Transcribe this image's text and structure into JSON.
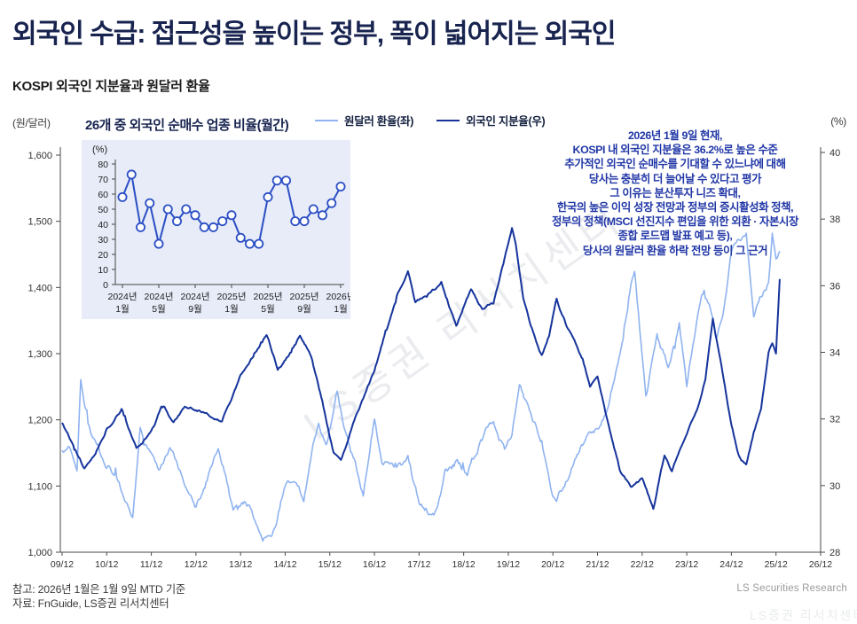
{
  "header": {
    "title": "외국인 수급: 접근성을 높이는 정부, 폭이 넓어지는 외국인"
  },
  "chart_subtitle": "KOSPI 외국인 지분율과 원달러 환율",
  "axis_units": {
    "left": "(원/달러)",
    "right": "(%)"
  },
  "legend": {
    "series1": "원달러 환율(좌)",
    "series2": "외국인 지분율(우)"
  },
  "inset": {
    "title": "26개 중 외국인 순매수 업종 비율(월간)"
  },
  "annotation": {
    "line1": "2026년 1월 9일 현재,",
    "line2": "KOSPI 내 외국인 지분율은 36.2%로 높은 수준",
    "line3": "추가적인 외국인 순매수를 기대할 수 있느냐에 대해",
    "line4": "당사는 충분히 더 늘어날 수 있다고 평가",
    "line5": "그 이유는 분산투자 니즈 확대,",
    "line6": "한국의 높은 이익 성장 전망과 정부의 증시활성화 정책,",
    "line7": "정부의 정책(MSCI 선진지수 편입을 위한 외환 · 자본시장",
    "line8": "종합 로드맵 발표 예고 등),",
    "line9": "당사의 원달러 환율 하락 전망 등이 그 근거"
  },
  "watermark": {
    "text": "LS증권 리서치센터"
  },
  "footer": {
    "note": "참고: 2026년 1월은 1월 9일 MTD 기준",
    "source": "자료: FnGuide, LS증권 리서치센터",
    "brand": "LS Securities  Research"
  },
  "colors": {
    "title_navy": "#18244f",
    "series_usdkrw": "#8fb3f0",
    "series_ownership": "#16349c",
    "annotation_blue": "#2036a6",
    "inset_bg": "#e7ecf8",
    "inset_line": "#2b4ec4",
    "axis": "#4a4a4a",
    "tick_text": "#333333"
  },
  "chart_data": [
    {
      "type": "line",
      "title": "KOSPI 외국인 지분율과 원달러 환율",
      "x_tick_labels": [
        "09/12",
        "10/12",
        "11/12",
        "12/12",
        "13/12",
        "14/12",
        "15/12",
        "16/12",
        "17/12",
        "18/12",
        "19/12",
        "20/12",
        "21/12",
        "22/12",
        "23/12",
        "24/12",
        "25/12",
        "26/12"
      ],
      "left_axis": {
        "unit": "(원/달러)",
        "min": 1000,
        "max": 1600,
        "ticks": [
          1000,
          1100,
          1200,
          1300,
          1400,
          1500,
          1600
        ]
      },
      "right_axis": {
        "unit": "(%)",
        "min": 28,
        "max": 40,
        "ticks": [
          28,
          30,
          32,
          34,
          36,
          38,
          40
        ]
      },
      "legend_position": "top",
      "grid": false,
      "series": [
        {
          "name": "원달러 환율(좌)",
          "axis": "left",
          "points": [
            [
              "2009-12",
              1150
            ],
            [
              "2010-02",
              1160
            ],
            [
              "2010-04",
              1115
            ],
            [
              "2010-05",
              1255
            ],
            [
              "2010-07",
              1195
            ],
            [
              "2010-09",
              1165
            ],
            [
              "2010-12",
              1135
            ],
            [
              "2011-03",
              1115
            ],
            [
              "2011-07",
              1060
            ],
            [
              "2011-09",
              1190
            ],
            [
              "2011-10",
              1160
            ],
            [
              "2011-12",
              1150
            ],
            [
              "2012-02",
              1125
            ],
            [
              "2012-05",
              1165
            ],
            [
              "2012-07",
              1135
            ],
            [
              "2012-09",
              1110
            ],
            [
              "2012-12",
              1070
            ],
            [
              "2013-03",
              1110
            ],
            [
              "2013-06",
              1155
            ],
            [
              "2013-08",
              1115
            ],
            [
              "2013-10",
              1060
            ],
            [
              "2014-01",
              1070
            ],
            [
              "2014-03",
              1065
            ],
            [
              "2014-06",
              1015
            ],
            [
              "2014-09",
              1035
            ],
            [
              "2014-12",
              1100
            ],
            [
              "2015-03",
              1110
            ],
            [
              "2015-05",
              1085
            ],
            [
              "2015-09",
              1195
            ],
            [
              "2015-11",
              1155
            ],
            [
              "2016-02",
              1240
            ],
            [
              "2016-05",
              1165
            ],
            [
              "2016-09",
              1090
            ],
            [
              "2016-12",
              1205
            ],
            [
              "2017-02",
              1140
            ],
            [
              "2017-05",
              1125
            ],
            [
              "2017-09",
              1140
            ],
            [
              "2017-12",
              1075
            ],
            [
              "2018-04",
              1055
            ],
            [
              "2018-07",
              1120
            ],
            [
              "2018-10",
              1135
            ],
            [
              "2019-01",
              1120
            ],
            [
              "2019-04",
              1160
            ],
            [
              "2019-08",
              1200
            ],
            [
              "2019-11",
              1160
            ],
            [
              "2020-01",
              1175
            ],
            [
              "2020-03",
              1250
            ],
            [
              "2020-06",
              1205
            ],
            [
              "2020-09",
              1170
            ],
            [
              "2020-12",
              1090
            ],
            [
              "2021-01",
              1080
            ],
            [
              "2021-05",
              1125
            ],
            [
              "2021-08",
              1160
            ],
            [
              "2021-10",
              1185
            ],
            [
              "2021-12",
              1185
            ],
            [
              "2022-03",
              1220
            ],
            [
              "2022-06",
              1300
            ],
            [
              "2022-09",
              1410
            ],
            [
              "2022-10",
              1430
            ],
            [
              "2022-12",
              1300
            ],
            [
              "2023-01",
              1235
            ],
            [
              "2023-04",
              1320
            ],
            [
              "2023-07",
              1280
            ],
            [
              "2023-10",
              1345
            ],
            [
              "2023-12",
              1255
            ],
            [
              "2024-02",
              1330
            ],
            [
              "2024-04",
              1390
            ],
            [
              "2024-06",
              1370
            ],
            [
              "2024-08",
              1320
            ],
            [
              "2024-10",
              1365
            ],
            [
              "2024-12",
              1450
            ],
            [
              "2025-01",
              1465
            ],
            [
              "2025-04",
              1480
            ],
            [
              "2025-06",
              1360
            ],
            [
              "2025-08",
              1385
            ],
            [
              "2025-10",
              1405
            ],
            [
              "2025-11",
              1478
            ],
            [
              "2025-12",
              1440
            ],
            [
              "2026-01",
              1455
            ]
          ]
        },
        {
          "name": "외국인 지분율(우)",
          "axis": "right",
          "points": [
            [
              "2009-12",
              31.9
            ],
            [
              "2010-03",
              31.2
            ],
            [
              "2010-06",
              30.5
            ],
            [
              "2010-09",
              31.0
            ],
            [
              "2010-12",
              31.7
            ],
            [
              "2011-04",
              32.3
            ],
            [
              "2011-08",
              31.1
            ],
            [
              "2011-12",
              31.6
            ],
            [
              "2012-03",
              32.4
            ],
            [
              "2012-06",
              31.9
            ],
            [
              "2012-09",
              32.4
            ],
            [
              "2012-12",
              32.3
            ],
            [
              "2013-04",
              32.1
            ],
            [
              "2013-07",
              31.9
            ],
            [
              "2013-12",
              33.3
            ],
            [
              "2014-04",
              34.0
            ],
            [
              "2014-07",
              34.5
            ],
            [
              "2014-10",
              33.5
            ],
            [
              "2015-01",
              33.9
            ],
            [
              "2015-04",
              34.5
            ],
            [
              "2015-07",
              33.9
            ],
            [
              "2015-10",
              32.5
            ],
            [
              "2016-01",
              31.0
            ],
            [
              "2016-03",
              30.7
            ],
            [
              "2016-06",
              31.8
            ],
            [
              "2016-09",
              32.6
            ],
            [
              "2016-12",
              33.5
            ],
            [
              "2017-03",
              34.6
            ],
            [
              "2017-06",
              35.7
            ],
            [
              "2017-09",
              36.4
            ],
            [
              "2017-11",
              35.5
            ],
            [
              "2018-03",
              35.8
            ],
            [
              "2018-06",
              36.1
            ],
            [
              "2018-10",
              34.8
            ],
            [
              "2019-02",
              35.9
            ],
            [
              "2019-05",
              35.3
            ],
            [
              "2019-08",
              35.5
            ],
            [
              "2019-11",
              36.8
            ],
            [
              "2020-01",
              37.7
            ],
            [
              "2020-02",
              37.2
            ],
            [
              "2020-04",
              35.6
            ],
            [
              "2020-06",
              34.8
            ],
            [
              "2020-09",
              33.9
            ],
            [
              "2020-11",
              34.5
            ],
            [
              "2021-01",
              35.6
            ],
            [
              "2021-04",
              34.7
            ],
            [
              "2021-08",
              33.8
            ],
            [
              "2021-10",
              33.0
            ],
            [
              "2021-12",
              33.3
            ],
            [
              "2022-03",
              31.8
            ],
            [
              "2022-06",
              30.5
            ],
            [
              "2022-09",
              29.9
            ],
            [
              "2022-12",
              30.2
            ],
            [
              "2023-03",
              29.3
            ],
            [
              "2023-06",
              30.9
            ],
            [
              "2023-08",
              30.4
            ],
            [
              "2023-10",
              31.0
            ],
            [
              "2023-12",
              31.6
            ],
            [
              "2024-03",
              32.4
            ],
            [
              "2024-05",
              33.2
            ],
            [
              "2024-07",
              35.0
            ],
            [
              "2024-09",
              33.8
            ],
            [
              "2024-12",
              31.8
            ],
            [
              "2025-02",
              30.9
            ],
            [
              "2025-04",
              30.6
            ],
            [
              "2025-06",
              31.6
            ],
            [
              "2025-08",
              32.3
            ],
            [
              "2025-10",
              34.0
            ],
            [
              "2025-11",
              34.3
            ],
            [
              "2025-12",
              34.0
            ],
            [
              "2026-01",
              36.2
            ]
          ]
        }
      ]
    },
    {
      "type": "line",
      "title": "26개 중 외국인 순매수 업종 비율(월간)",
      "ylabel": "(%)",
      "ylim": [
        0,
        80
      ],
      "yticks": [
        0,
        10,
        20,
        30,
        40,
        50,
        60,
        70,
        80
      ],
      "categories": [
        "2024-01",
        "2024-02",
        "2024-03",
        "2024-04",
        "2024-05",
        "2024-06",
        "2024-07",
        "2024-08",
        "2024-09",
        "2024-10",
        "2024-11",
        "2024-12",
        "2025-01",
        "2025-02",
        "2025-03",
        "2025-04",
        "2025-05",
        "2025-06",
        "2025-07",
        "2025-08",
        "2025-09",
        "2025-10",
        "2025-11",
        "2025-12",
        "2026-01"
      ],
      "values": [
        58,
        73,
        38,
        54,
        27,
        50,
        42,
        50,
        46,
        38,
        38,
        42,
        46,
        31,
        27,
        27,
        58,
        69,
        69,
        42,
        42,
        50,
        46,
        54,
        65
      ],
      "x_tick_marks": [
        {
          "index": 0,
          "line1": "2024년",
          "line2": "1월"
        },
        {
          "index": 4,
          "line1": "2024년",
          "line2": "5월"
        },
        {
          "index": 8,
          "line1": "2024년",
          "line2": "9월"
        },
        {
          "index": 12,
          "line1": "2025년",
          "line2": "1월"
        },
        {
          "index": 16,
          "line1": "2025년",
          "line2": "5월"
        },
        {
          "index": 20,
          "line1": "2025년",
          "line2": "9월"
        },
        {
          "index": 24,
          "line1": "2026년",
          "line2": "1월"
        }
      ],
      "marker": "circle-open",
      "grid": false
    }
  ]
}
